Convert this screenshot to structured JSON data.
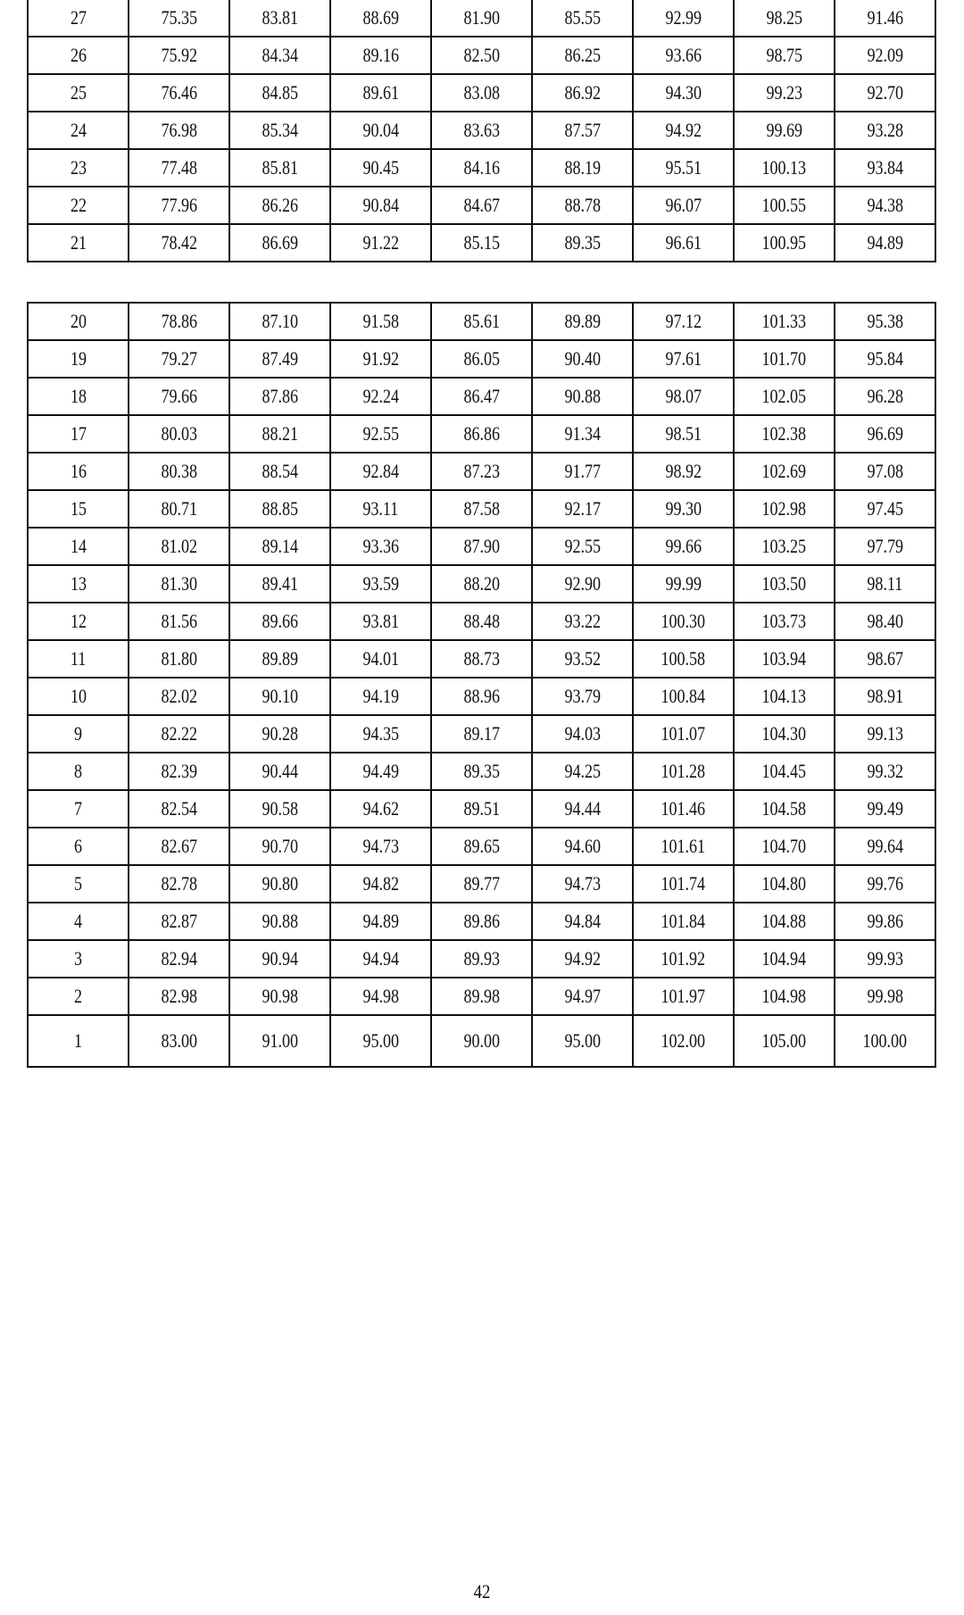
{
  "table_top": {
    "rows": [
      [
        "27",
        "75.35",
        "83.81",
        "88.69",
        "81.90",
        "85.55",
        "92.99",
        "98.25",
        "91.46"
      ],
      [
        "26",
        "75.92",
        "84.34",
        "89.16",
        "82.50",
        "86.25",
        "93.66",
        "98.75",
        "92.09"
      ],
      [
        "25",
        "76.46",
        "84.85",
        "89.61",
        "83.08",
        "86.92",
        "94.30",
        "99.23",
        "92.70"
      ],
      [
        "24",
        "76.98",
        "85.34",
        "90.04",
        "83.63",
        "87.57",
        "94.92",
        "99.69",
        "93.28"
      ],
      [
        "23",
        "77.48",
        "85.81",
        "90.45",
        "84.16",
        "88.19",
        "95.51",
        "100.13",
        "93.84"
      ],
      [
        "22",
        "77.96",
        "86.26",
        "90.84",
        "84.67",
        "88.78",
        "96.07",
        "100.55",
        "94.38"
      ],
      [
        "21",
        "78.42",
        "86.69",
        "91.22",
        "85.15",
        "89.35",
        "96.61",
        "100.95",
        "94.89"
      ]
    ]
  },
  "table_bottom": {
    "rows": [
      [
        "20",
        "78.86",
        "87.10",
        "91.58",
        "85.61",
        "89.89",
        "97.12",
        "101.33",
        "95.38"
      ],
      [
        "19",
        "79.27",
        "87.49",
        "91.92",
        "86.05",
        "90.40",
        "97.61",
        "101.70",
        "95.84"
      ],
      [
        "18",
        "79.66",
        "87.86",
        "92.24",
        "86.47",
        "90.88",
        "98.07",
        "102.05",
        "96.28"
      ],
      [
        "17",
        "80.03",
        "88.21",
        "92.55",
        "86.86",
        "91.34",
        "98.51",
        "102.38",
        "96.69"
      ],
      [
        "16",
        "80.38",
        "88.54",
        "92.84",
        "87.23",
        "91.77",
        "98.92",
        "102.69",
        "97.08"
      ],
      [
        "15",
        "80.71",
        "88.85",
        "93.11",
        "87.58",
        "92.17",
        "99.30",
        "102.98",
        "97.45"
      ],
      [
        "14",
        "81.02",
        "89.14",
        "93.36",
        "87.90",
        "92.55",
        "99.66",
        "103.25",
        "97.79"
      ],
      [
        "13",
        "81.30",
        "89.41",
        "93.59",
        "88.20",
        "92.90",
        "99.99",
        "103.50",
        "98.11"
      ],
      [
        "12",
        "81.56",
        "89.66",
        "93.81",
        "88.48",
        "93.22",
        "100.30",
        "103.73",
        "98.40"
      ],
      [
        "11",
        "81.80",
        "89.89",
        "94.01",
        "88.73",
        "93.52",
        "100.58",
        "103.94",
        "98.67"
      ],
      [
        "10",
        "82.02",
        "90.10",
        "94.19",
        "88.96",
        "93.79",
        "100.84",
        "104.13",
        "98.91"
      ],
      [
        "9",
        "82.22",
        "90.28",
        "94.35",
        "89.17",
        "94.03",
        "101.07",
        "104.30",
        "99.13"
      ],
      [
        "8",
        "82.39",
        "90.44",
        "94.49",
        "89.35",
        "94.25",
        "101.28",
        "104.45",
        "99.32"
      ],
      [
        "7",
        "82.54",
        "90.58",
        "94.62",
        "89.51",
        "94.44",
        "101.46",
        "104.58",
        "99.49"
      ],
      [
        "6",
        "82.67",
        "90.70",
        "94.73",
        "89.65",
        "94.60",
        "101.61",
        "104.70",
        "99.64"
      ],
      [
        "5",
        "82.78",
        "90.80",
        "94.82",
        "89.77",
        "94.73",
        "101.74",
        "104.80",
        "99.76"
      ],
      [
        "4",
        "82.87",
        "90.88",
        "94.89",
        "89.86",
        "94.84",
        "101.84",
        "104.88",
        "99.86"
      ],
      [
        "3",
        "82.94",
        "90.94",
        "94.94",
        "89.93",
        "94.92",
        "101.92",
        "104.94",
        "99.93"
      ],
      [
        "2",
        "82.98",
        "90.98",
        "94.98",
        "89.98",
        "94.97",
        "101.97",
        "104.98",
        "99.98"
      ],
      [
        "1",
        "83.00",
        "91.00",
        "95.00",
        "90.00",
        "95.00",
        "102.00",
        "105.00",
        "100.00"
      ]
    ]
  },
  "footer": {
    "page_number": "42"
  }
}
